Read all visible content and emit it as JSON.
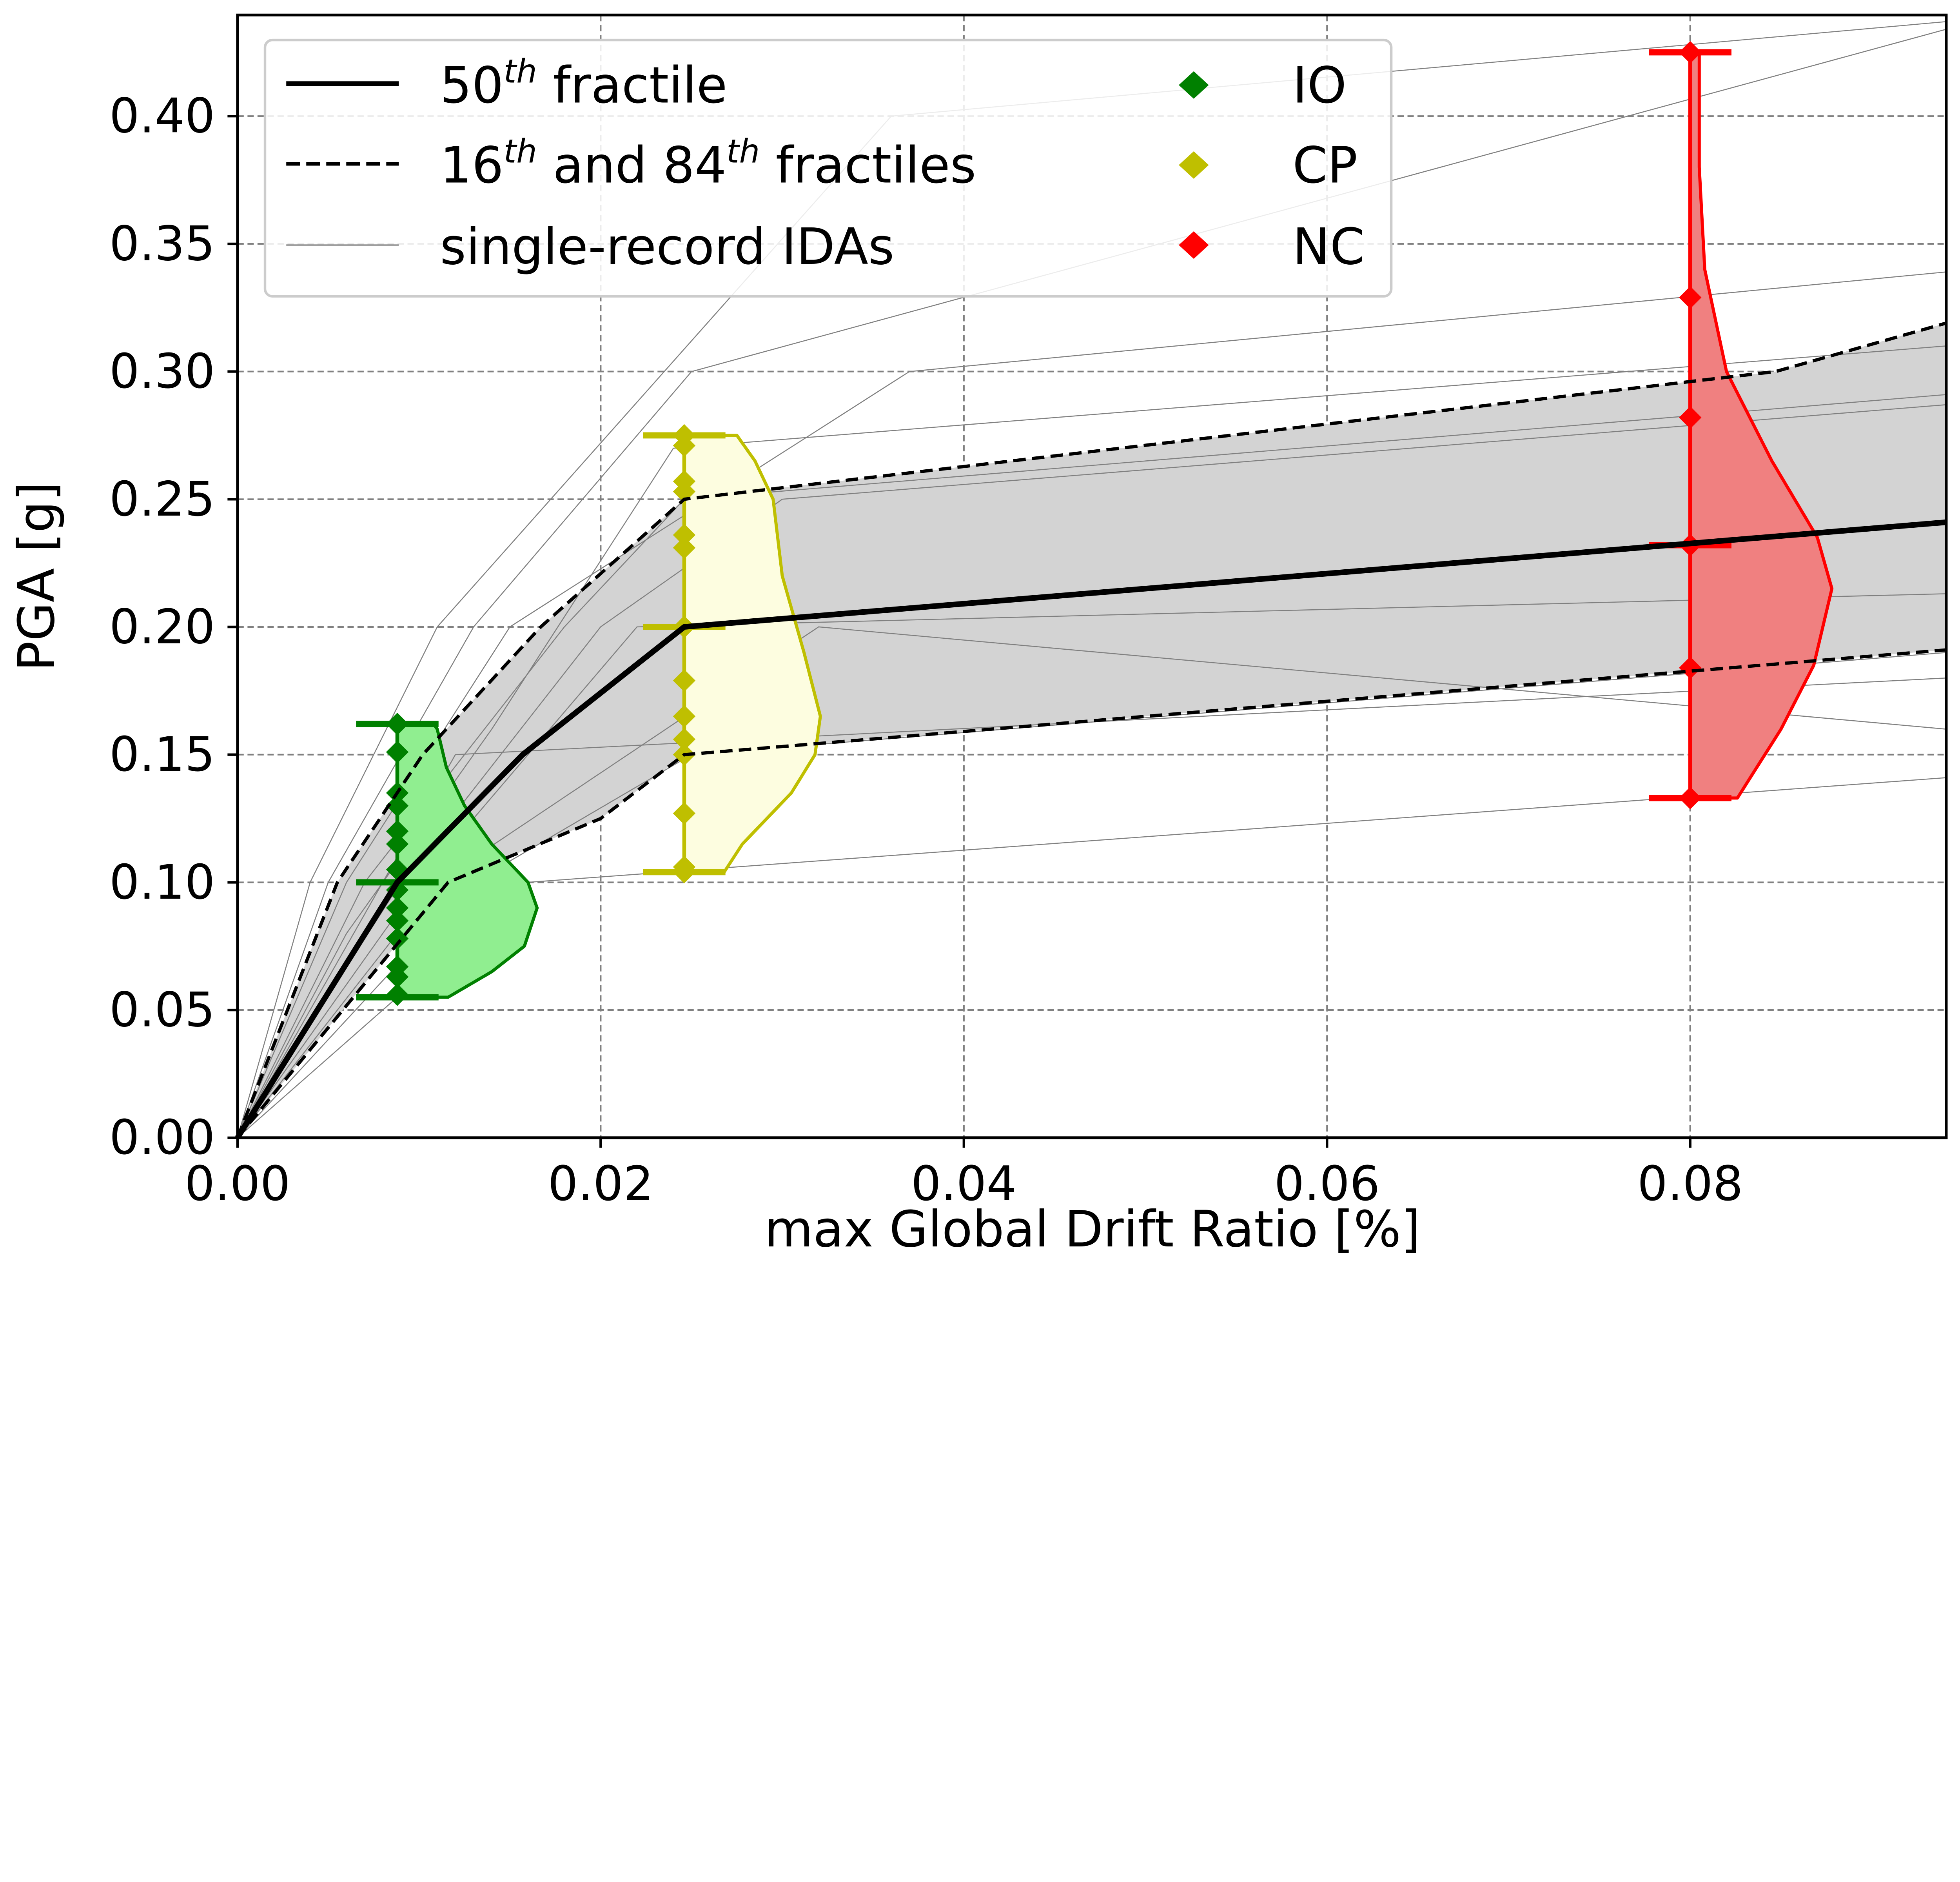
{
  "chart_data": {
    "type": "line",
    "xlabel": "max Global Drift Ratio [%]",
    "ylabel": "PGA [g]",
    "xlim": [
      0,
      0.0941
    ],
    "ylim": [
      0,
      0.4396
    ],
    "xticks": [
      "0.00",
      "0.02",
      "0.04",
      "0.06",
      "0.08"
    ],
    "yticks": [
      "0.00",
      "0.05",
      "0.10",
      "0.15",
      "0.20",
      "0.25",
      "0.30",
      "0.35",
      "0.40"
    ],
    "grid": true,
    "legend_placement": "top-left",
    "legend": {
      "median": {
        "pre": "50",
        "sup": "th",
        "post": " fractile"
      },
      "fractiles": {
        "pre": "16",
        "sup": "th",
        "mid": " and 84",
        "sup2": "th",
        "post": " fractiles"
      },
      "single": "single-record IDAs",
      "io": "IO",
      "cp": "CP",
      "nc": "NC"
    },
    "colors": {
      "io": "#008000",
      "io_fill": "#90ee90",
      "cp": "#bfbf00",
      "cp_fill": "#fdfde0",
      "nc": "#ff0000",
      "nc_fill": "#f08080",
      "band": "#d3d3d3",
      "ida": "#808080"
    },
    "series": [
      {
        "name": "50th fractile",
        "style": "solid",
        "points": [
          [
            0,
            0
          ],
          [
            0.0088,
            0.1
          ],
          [
            0.0157,
            0.15
          ],
          [
            0.0246,
            0.2
          ],
          [
            0.0941,
            0.241
          ]
        ]
      },
      {
        "name": "84th fractile",
        "style": "dashed",
        "points": [
          [
            0,
            0
          ],
          [
            0.0055,
            0.1
          ],
          [
            0.0102,
            0.15
          ],
          [
            0.0167,
            0.2
          ],
          [
            0.0246,
            0.25
          ],
          [
            0.0847,
            0.3
          ],
          [
            0.0941,
            0.319
          ]
        ]
      },
      {
        "name": "16th fractile",
        "style": "dashed",
        "points": [
          [
            0,
            0
          ],
          [
            0.0116,
            0.1
          ],
          [
            0.02,
            0.125
          ],
          [
            0.0246,
            0.15
          ],
          [
            0.0941,
            0.191
          ]
        ]
      }
    ],
    "single_record_idas": [
      [
        [
          0,
          0
        ],
        [
          0.004,
          0.1
        ],
        [
          0.011,
          0.2
        ],
        [
          0.036,
          0.4
        ],
        [
          0.0941,
          0.437
        ]
      ],
      [
        [
          0,
          0
        ],
        [
          0.005,
          0.1
        ],
        [
          0.013,
          0.2
        ],
        [
          0.025,
          0.3
        ],
        [
          0.0941,
          0.434
        ]
      ],
      [
        [
          0,
          0
        ],
        [
          0.006,
          0.1
        ],
        [
          0.015,
          0.2
        ],
        [
          0.037,
          0.3
        ],
        [
          0.0941,
          0.339
        ]
      ],
      [
        [
          0,
          0
        ],
        [
          0.007,
          0.1
        ],
        [
          0.018,
          0.2
        ],
        [
          0.0246,
          0.25
        ],
        [
          0.0941,
          0.291
        ]
      ],
      [
        [
          0,
          0
        ],
        [
          0.009,
          0.1
        ],
        [
          0.02,
          0.2
        ],
        [
          0.03,
          0.25
        ],
        [
          0.0941,
          0.287
        ]
      ],
      [
        [
          0,
          0
        ],
        [
          0.01,
          0.1
        ],
        [
          0.022,
          0.2
        ],
        [
          0.0941,
          0.213
        ]
      ],
      [
        [
          0,
          0
        ],
        [
          0.011,
          0.1
        ],
        [
          0.032,
          0.2
        ],
        [
          0.0941,
          0.16
        ]
      ],
      [
        [
          0,
          0
        ],
        [
          0.013,
          0.1
        ],
        [
          0.025,
          0.15
        ],
        [
          0.0941,
          0.19
        ]
      ],
      [
        [
          0,
          0
        ],
        [
          0.016,
          0.1
        ],
        [
          0.0941,
          0.141
        ]
      ],
      [
        [
          0,
          0
        ],
        [
          0.008,
          0.1
        ],
        [
          0.012,
          0.15
        ],
        [
          0.0941,
          0.18
        ]
      ],
      [
        [
          0,
          0
        ],
        [
          0.006,
          0.08
        ],
        [
          0.014,
          0.16
        ],
        [
          0.024,
          0.27
        ],
        [
          0.0941,
          0.31
        ]
      ]
    ],
    "violins": [
      {
        "name": "IO",
        "x": 0.0088,
        "min": 0.055,
        "median": 0.1,
        "max": 0.162,
        "points": [
          0.162,
          0.151,
          0.135,
          0.13,
          0.12,
          0.115,
          0.105,
          0.097,
          0.09,
          0.085,
          0.078,
          0.067,
          0.063,
          0.056
        ],
        "profile": [
          [
            0.055,
            0.0116
          ],
          [
            0.065,
            0.014
          ],
          [
            0.075,
            0.0158
          ],
          [
            0.09,
            0.0165
          ],
          [
            0.1,
            0.016
          ],
          [
            0.115,
            0.014
          ],
          [
            0.13,
            0.0125
          ],
          [
            0.145,
            0.0115
          ],
          [
            0.16,
            0.011
          ],
          [
            0.162,
            0.0108
          ]
        ]
      },
      {
        "name": "CP",
        "x": 0.0246,
        "min": 0.104,
        "median": 0.2,
        "max": 0.275,
        "points": [
          0.275,
          0.271,
          0.257,
          0.253,
          0.236,
          0.231,
          0.2,
          0.179,
          0.165,
          0.156,
          0.15,
          0.127,
          0.106,
          0.104
        ],
        "profile": [
          [
            0.104,
            0.0268
          ],
          [
            0.115,
            0.0278
          ],
          [
            0.135,
            0.0305
          ],
          [
            0.15,
            0.0318
          ],
          [
            0.165,
            0.0321
          ],
          [
            0.19,
            0.0312
          ],
          [
            0.22,
            0.03
          ],
          [
            0.25,
            0.0295
          ],
          [
            0.265,
            0.0285
          ],
          [
            0.275,
            0.0275
          ]
        ]
      },
      {
        "name": "NC",
        "x": 0.08,
        "min": 0.133,
        "median": 0.232,
        "max": 0.425,
        "points": [
          0.425,
          0.329,
          0.282,
          0.232,
          0.184,
          0.133
        ],
        "profile": [
          [
            0.133,
            0.0826
          ],
          [
            0.16,
            0.085
          ],
          [
            0.185,
            0.0868
          ],
          [
            0.215,
            0.0878
          ],
          [
            0.235,
            0.087
          ],
          [
            0.265,
            0.0845
          ],
          [
            0.3,
            0.082
          ],
          [
            0.34,
            0.0808
          ],
          [
            0.38,
            0.0805
          ],
          [
            0.425,
            0.0805
          ]
        ]
      }
    ]
  }
}
